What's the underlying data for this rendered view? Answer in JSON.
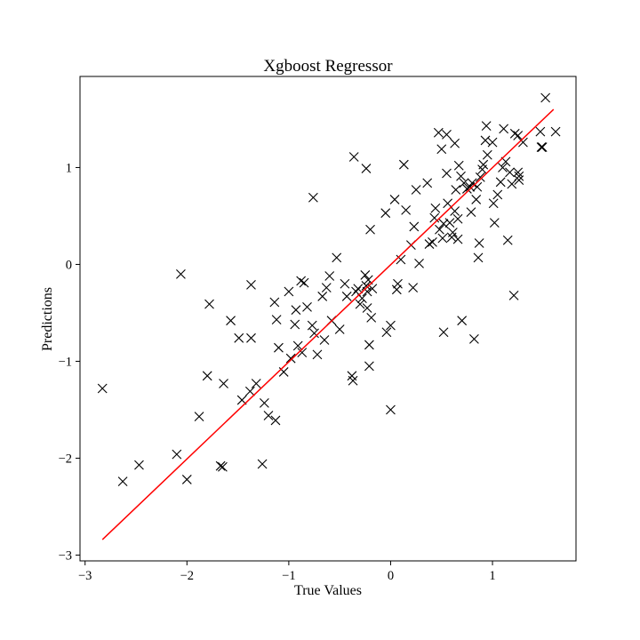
{
  "chart_data": {
    "type": "scatter",
    "title": "Xgboost Regressor",
    "xlabel": "True Values",
    "ylabel": "Predictions",
    "xlim": [
      -3.05,
      1.82
    ],
    "ylim": [
      -3.06,
      1.94
    ],
    "xticks": [
      -3,
      -2,
      -1,
      0,
      1
    ],
    "xtick_labels": [
      "−3",
      "−2",
      "−1",
      "0",
      "1"
    ],
    "yticks": [
      -3,
      -2,
      -1,
      0,
      1
    ],
    "ytick_labels": [
      "−3",
      "−2",
      "−1",
      "0",
      "1"
    ],
    "grid": false,
    "marker": "x",
    "marker_color": "#000000",
    "fit_line": {
      "color": "#ff0000",
      "x": [
        -2.83,
        1.6
      ],
      "y": [
        -2.84,
        1.6
      ]
    },
    "points": [
      [
        -2.83,
        -1.28
      ],
      [
        -2.63,
        -2.24
      ],
      [
        -2.47,
        -2.07
      ],
      [
        -2.1,
        -1.96
      ],
      [
        -2.06,
        -0.1
      ],
      [
        -2.0,
        -2.22
      ],
      [
        -1.88,
        -1.57
      ],
      [
        -1.8,
        -1.15
      ],
      [
        -1.78,
        -0.41
      ],
      [
        -1.67,
        -2.08
      ],
      [
        -1.65,
        -2.09
      ],
      [
        -1.64,
        -1.23
      ],
      [
        -1.57,
        -0.58
      ],
      [
        -1.49,
        -0.76
      ],
      [
        -1.46,
        -1.4
      ],
      [
        -1.38,
        -1.31
      ],
      [
        -1.37,
        -0.21
      ],
      [
        -1.37,
        -0.76
      ],
      [
        -1.32,
        -1.23
      ],
      [
        -1.26,
        -2.06
      ],
      [
        -1.24,
        -1.43
      ],
      [
        -1.2,
        -1.56
      ],
      [
        -1.14,
        -0.39
      ],
      [
        -1.13,
        -1.61
      ],
      [
        -1.12,
        -0.57
      ],
      [
        -1.1,
        -0.86
      ],
      [
        -1.05,
        -1.11
      ],
      [
        -1.0,
        -0.28
      ],
      [
        -0.98,
        -0.97
      ],
      [
        -0.94,
        -0.62
      ],
      [
        -0.93,
        -0.47
      ],
      [
        -0.91,
        -0.84
      ],
      [
        -0.88,
        -0.17
      ],
      [
        -0.87,
        -0.91
      ],
      [
        -0.85,
        -0.19
      ],
      [
        -0.82,
        -0.44
      ],
      [
        -0.77,
        -0.63
      ],
      [
        -0.76,
        0.69
      ],
      [
        -0.75,
        -0.71
      ],
      [
        -0.72,
        -0.93
      ],
      [
        -0.67,
        -0.33
      ],
      [
        -0.65,
        -0.78
      ],
      [
        -0.63,
        -0.24
      ],
      [
        -0.6,
        -0.12
      ],
      [
        -0.58,
        -0.58
      ],
      [
        -0.53,
        0.07
      ],
      [
        -0.5,
        -0.67
      ],
      [
        -0.45,
        -0.2
      ],
      [
        -0.43,
        -0.33
      ],
      [
        -0.38,
        -1.15
      ],
      [
        -0.37,
        -1.2
      ],
      [
        -0.36,
        1.11
      ],
      [
        -0.34,
        -0.28
      ],
      [
        -0.32,
        -0.25
      ],
      [
        -0.3,
        -0.41
      ],
      [
        -0.28,
        -0.35
      ],
      [
        -0.25,
        -0.11
      ],
      [
        -0.24,
        0.99
      ],
      [
        -0.24,
        -0.22
      ],
      [
        -0.22,
        -0.16
      ],
      [
        -0.23,
        -0.28
      ],
      [
        -0.23,
        -0.45
      ],
      [
        -0.21,
        -0.83
      ],
      [
        -0.21,
        -1.05
      ],
      [
        -0.2,
        0.36
      ],
      [
        -0.19,
        -0.55
      ],
      [
        -0.18,
        -0.25
      ],
      [
        -0.05,
        0.53
      ],
      [
        -0.04,
        -0.7
      ],
      [
        0.0,
        -0.63
      ],
      [
        0.0,
        -1.5
      ],
      [
        0.04,
        0.67
      ],
      [
        0.06,
        -0.26
      ],
      [
        0.07,
        -0.2
      ],
      [
        0.1,
        0.05
      ],
      [
        0.13,
        1.03
      ],
      [
        0.15,
        0.56
      ],
      [
        0.2,
        0.2
      ],
      [
        0.22,
        -0.24
      ],
      [
        0.23,
        0.39
      ],
      [
        0.25,
        0.77
      ],
      [
        0.28,
        0.01
      ],
      [
        0.36,
        0.84
      ],
      [
        0.38,
        0.21
      ],
      [
        0.41,
        0.23
      ],
      [
        0.43,
        0.48
      ],
      [
        0.44,
        0.58
      ],
      [
        0.47,
        1.36
      ],
      [
        0.48,
        0.36
      ],
      [
        0.5,
        1.19
      ],
      [
        0.51,
        0.27
      ],
      [
        0.52,
        -0.7
      ],
      [
        0.52,
        0.42
      ],
      [
        0.55,
        1.34
      ],
      [
        0.55,
        0.94
      ],
      [
        0.56,
        0.63
      ],
      [
        0.58,
        0.43
      ],
      [
        0.6,
        0.28
      ],
      [
        0.61,
        0.33
      ],
      [
        0.63,
        1.25
      ],
      [
        0.63,
        0.55
      ],
      [
        0.64,
        0.77
      ],
      [
        0.66,
        0.26
      ],
      [
        0.66,
        0.47
      ],
      [
        0.67,
        1.02
      ],
      [
        0.69,
        0.91
      ],
      [
        0.7,
        -0.58
      ],
      [
        0.72,
        0.84
      ],
      [
        0.75,
        0.78
      ],
      [
        0.78,
        0.8
      ],
      [
        0.79,
        0.54
      ],
      [
        0.8,
        0.84
      ],
      [
        0.82,
        -0.77
      ],
      [
        0.84,
        0.67
      ],
      [
        0.85,
        0.8
      ],
      [
        0.86,
        0.07
      ],
      [
        0.87,
        0.22
      ],
      [
        0.88,
        0.9
      ],
      [
        0.9,
        0.98
      ],
      [
        0.91,
        1.03
      ],
      [
        0.93,
        1.28
      ],
      [
        0.94,
        1.43
      ],
      [
        0.95,
        1.13
      ],
      [
        1.0,
        1.26
      ],
      [
        1.01,
        0.63
      ],
      [
        1.02,
        0.43
      ],
      [
        1.05,
        0.72
      ],
      [
        1.08,
        0.85
      ],
      [
        1.1,
        1.0
      ],
      [
        1.11,
        1.4
      ],
      [
        1.13,
        1.06
      ],
      [
        1.15,
        0.25
      ],
      [
        1.17,
        0.95
      ],
      [
        1.19,
        0.83
      ],
      [
        1.21,
        -0.32
      ],
      [
        1.22,
        1.35
      ],
      [
        1.25,
        1.33
      ],
      [
        1.26,
        0.91
      ],
      [
        1.25,
        0.95
      ],
      [
        1.26,
        0.87
      ],
      [
        1.3,
        1.26
      ],
      [
        1.47,
        1.37
      ],
      [
        1.48,
        1.21
      ],
      [
        1.49,
        1.21
      ],
      [
        1.52,
        1.72
      ],
      [
        1.62,
        1.37
      ]
    ]
  }
}
